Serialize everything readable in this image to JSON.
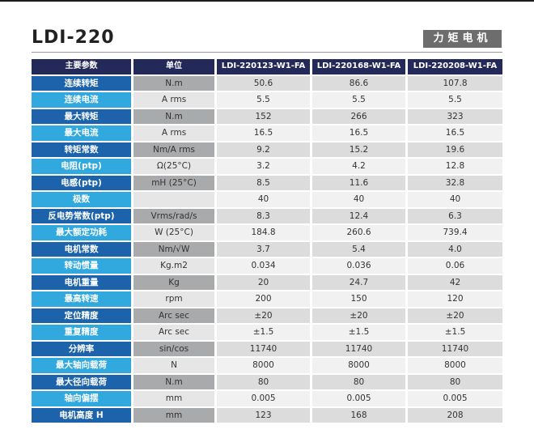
{
  "header": {
    "model": "LDI-220",
    "category": "力矩电机"
  },
  "table": {
    "columns": [
      "主要参数",
      "单位",
      "LDI-220123-W1-FA",
      "LDI-220168-W1-FA",
      "LDI-220208-W1-FA"
    ],
    "rows": [
      [
        "连续转矩",
        "N.m",
        "50.6",
        "86.6",
        "107.8"
      ],
      [
        "连续电流",
        "A rms",
        "5.5",
        "5.5",
        "5.5"
      ],
      [
        "最大转矩",
        "N.m",
        "152",
        "266",
        "323"
      ],
      [
        "最大电流",
        "A rms",
        "16.5",
        "16.5",
        "16.5"
      ],
      [
        "转矩常数",
        "Nm/A rms",
        "9.2",
        "15.2",
        "19.6"
      ],
      [
        "电阻(ptp)",
        "Ω(25°C)",
        "3.2",
        "4.2",
        "12.8"
      ],
      [
        "电感(ptp)",
        "mH (25°C)",
        "8.5",
        "11.6",
        "32.8"
      ],
      [
        "极数",
        "",
        "40",
        "40",
        "40"
      ],
      [
        "反电势常数(ptp)",
        "Vrms/rad/s",
        "8.3",
        "12.4",
        "6.3"
      ],
      [
        "最大额定功耗",
        "W (25°C)",
        "184.8",
        "260.6",
        "739.4"
      ],
      [
        "电机常数",
        "Nm/√W",
        "3.7",
        "5.4",
        "4.0"
      ],
      [
        "转动惯量",
        "Kg.m2",
        "0.034",
        "0.036",
        "0.06"
      ],
      [
        "电机重量",
        "Kg",
        "20",
        "24.7",
        "42"
      ],
      [
        "最高转速",
        "rpm",
        "200",
        "150",
        "120"
      ],
      [
        "定位精度",
        "Arc sec",
        "±20",
        "±20",
        "±20"
      ],
      [
        "重复精度",
        "Arc sec",
        "±1.5",
        "±1.5",
        "±1.5"
      ],
      [
        "分辨率",
        "sin/cos",
        "11740",
        "11740",
        "11740"
      ],
      [
        "最大轴向载荷",
        "N",
        "8000",
        "8000",
        "8000"
      ],
      [
        "最大径向载荷",
        "N.m",
        "80",
        "80",
        "80"
      ],
      [
        "轴向偏摆",
        "mm",
        "0.005",
        "0.005",
        "0.005"
      ],
      [
        "电机高度 H",
        "mm",
        "123",
        "168",
        "208"
      ]
    ]
  },
  "colors": {
    "header_bg": "#232a5a",
    "param_dark": "#1d63ab",
    "param_light": "#31a9df",
    "badge_bg": "#6d6d6d"
  }
}
